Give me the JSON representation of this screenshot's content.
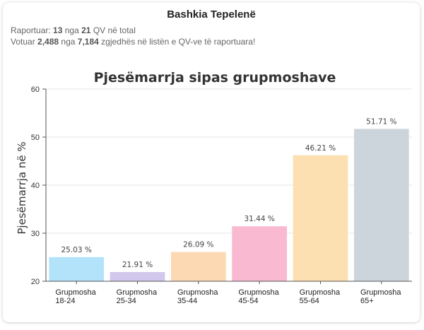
{
  "header": {
    "title": "Bashkia Tepelenë",
    "reported": {
      "prefix": "Raportuar:",
      "count": "13",
      "mid": "nga",
      "total": "21",
      "suffix": "QV në total"
    },
    "voted": {
      "prefix": "Votuar",
      "count": "2,488",
      "mid": "nga",
      "total": "7,184",
      "suffix": "zgjedhës në listën e QV-ve të raportuara!"
    }
  },
  "colors": {
    "bars": [
      "#b3e3fa",
      "#d2c7ec",
      "#fcd9b3",
      "#f8b9d1",
      "#fde0b1",
      "#cdd5dc"
    ],
    "grid": "#e6e6e6",
    "axis": "#555555"
  },
  "chart_data": {
    "type": "bar",
    "title": "Pjesëmarrja sipas grupmoshave",
    "xlabel": "",
    "ylabel": "Pjesëmarrja në %",
    "ylim": [
      20,
      60
    ],
    "yticks": [
      20,
      30,
      40,
      50,
      60
    ],
    "grid": true,
    "categories": [
      [
        "Grupmosha",
        "18-24"
      ],
      [
        "Grupmosha",
        "25-34"
      ],
      [
        "Grupmosha",
        "35-44"
      ],
      [
        "Grupmosha",
        "45-54"
      ],
      [
        "Grupmosha",
        "55-64"
      ],
      [
        "Grupmosha",
        "65+"
      ]
    ],
    "values": [
      25.03,
      21.91,
      26.09,
      31.44,
      46.21,
      51.71
    ],
    "data_labels": [
      "25.03 %",
      "21.91 %",
      "26.09 %",
      "31.44 %",
      "46.21 %",
      "51.71 %"
    ]
  }
}
